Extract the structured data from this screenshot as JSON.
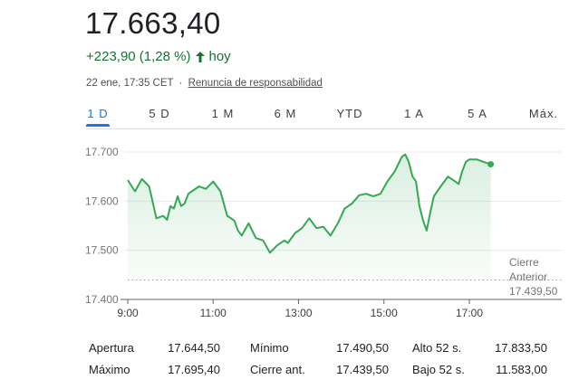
{
  "quote": {
    "price": "17.663,40",
    "change": "+223,90 (1,28 %)",
    "period": "hoy",
    "timestamp": "22 ene, 17:35 CET",
    "separator": "·",
    "disclaimer": "Renuncia de responsabilidad"
  },
  "colors": {
    "positive": "#137333",
    "line": "#34a853",
    "tab_active": "#1a73e8"
  },
  "tabs": [
    "1 D",
    "5 D",
    "1 M",
    "6 M",
    "YTD",
    "1 A",
    "5 A",
    "Máx."
  ],
  "active_tab": "1 D",
  "chart_data": {
    "type": "area",
    "title": "",
    "xlabel": "",
    "ylabel": "",
    "x_ticks": [
      "9:00",
      "11:00",
      "13:00",
      "15:00",
      "17:00"
    ],
    "y_ticks": [
      "17.700",
      "17.600",
      "17.500",
      "17.400"
    ],
    "ylim": [
      17400,
      17700
    ],
    "xlim_hours": [
      9.0,
      17.75
    ],
    "previous_close": {
      "label_line1": "Cierre",
      "label_line2": "Anterior",
      "value_label": "17.439,50",
      "value": 17439.5
    },
    "series": [
      {
        "x": [
          9.0,
          9.17,
          9.33,
          9.5,
          9.67,
          9.83,
          9.92,
          10.0,
          10.08,
          10.17,
          10.25,
          10.33,
          10.42,
          10.5,
          10.67,
          10.83,
          11.0,
          11.17,
          11.25,
          11.33,
          11.42,
          11.5,
          11.58,
          11.67,
          11.83,
          12.0,
          12.17,
          12.33,
          12.5,
          12.67,
          12.75,
          12.92,
          13.08,
          13.25,
          13.42,
          13.58,
          13.75,
          13.92,
          14.08,
          14.25,
          14.42,
          14.58,
          14.75,
          14.92,
          15.08,
          15.25,
          15.42,
          15.5,
          15.58,
          15.67,
          15.75,
          15.83,
          15.92,
          16.0,
          16.08,
          16.17,
          16.33,
          16.5,
          16.67,
          16.75,
          16.83,
          16.92,
          17.0,
          17.17,
          17.33,
          17.5
        ],
        "y": [
          17643,
          17620,
          17645,
          17630,
          17565,
          17570,
          17562,
          17590,
          17585,
          17610,
          17590,
          17595,
          17615,
          17620,
          17630,
          17625,
          17640,
          17620,
          17595,
          17570,
          17565,
          17560,
          17540,
          17530,
          17555,
          17525,
          17520,
          17495,
          17510,
          17520,
          17515,
          17535,
          17545,
          17565,
          17545,
          17548,
          17530,
          17555,
          17585,
          17595,
          17612,
          17615,
          17610,
          17615,
          17640,
          17660,
          17690,
          17695,
          17680,
          17650,
          17640,
          17590,
          17560,
          17540,
          17575,
          17610,
          17630,
          17650,
          17640,
          17635,
          17660,
          17680,
          17685,
          17685,
          17680,
          17675
        ]
      }
    ]
  },
  "stats": [
    [
      {
        "label": "Apertura",
        "value": "17.644,50"
      },
      {
        "label": "Mínimo",
        "value": "17.490,50"
      },
      {
        "label": "Alto 52 s.",
        "value": "17.833,50"
      }
    ],
    [
      {
        "label": "Máximo",
        "value": "17.695,40"
      },
      {
        "label": "Cierre ant.",
        "value": "17.439,50"
      },
      {
        "label": "Bajo 52 s.",
        "value": "11.583,00"
      }
    ]
  ]
}
